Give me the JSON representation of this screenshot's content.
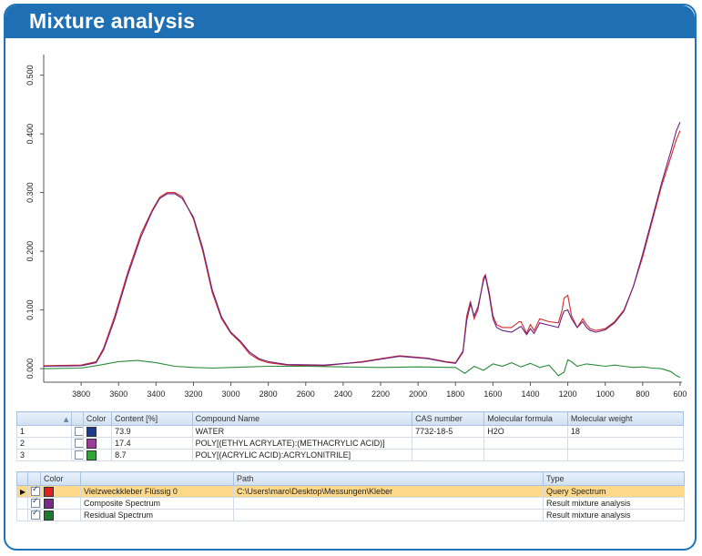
{
  "title": "Mixture analysis",
  "chart_data": {
    "type": "line",
    "x_ticks": [
      "3800",
      "3600",
      "3400",
      "3200",
      "3000",
      "2800",
      "2600",
      "2400",
      "2200",
      "2000",
      "1800",
      "1600",
      "1400",
      "1200",
      "1000",
      "800",
      "600"
    ],
    "y_ticks": [
      "0.000",
      "0.100",
      "0.200",
      "0.300",
      "0.400",
      "0.500"
    ],
    "xlim": [
      4000,
      590
    ],
    "ylim": [
      -0.02,
      0.535
    ],
    "series": [
      {
        "name": "Vielzweckkleber Flüssig 0",
        "color": "#d42a2a",
        "x": [
          4000,
          3800,
          3720,
          3680,
          3620,
          3550,
          3480,
          3420,
          3380,
          3340,
          3300,
          3260,
          3200,
          3150,
          3100,
          3050,
          3000,
          2950,
          2900,
          2850,
          2800,
          2700,
          2500,
          2300,
          2100,
          1950,
          1850,
          1800,
          1760,
          1740,
          1720,
          1700,
          1680,
          1650,
          1640,
          1620,
          1600,
          1580,
          1550,
          1500,
          1460,
          1450,
          1420,
          1400,
          1380,
          1350,
          1300,
          1250,
          1230,
          1220,
          1200,
          1180,
          1150,
          1120,
          1100,
          1080,
          1050,
          1000,
          950,
          900,
          850,
          800,
          750,
          700,
          650,
          620,
          600
        ],
        "y": [
          0.005,
          0.006,
          0.012,
          0.035,
          0.09,
          0.165,
          0.23,
          0.27,
          0.292,
          0.3,
          0.3,
          0.293,
          0.255,
          0.2,
          0.13,
          0.085,
          0.06,
          0.045,
          0.025,
          0.015,
          0.01,
          0.006,
          0.005,
          0.012,
          0.022,
          0.018,
          0.012,
          0.01,
          0.03,
          0.09,
          0.115,
          0.085,
          0.1,
          0.155,
          0.16,
          0.13,
          0.09,
          0.075,
          0.07,
          0.07,
          0.08,
          0.08,
          0.06,
          0.075,
          0.065,
          0.085,
          0.08,
          0.078,
          0.1,
          0.12,
          0.125,
          0.09,
          0.07,
          0.085,
          0.075,
          0.068,
          0.065,
          0.068,
          0.08,
          0.1,
          0.14,
          0.19,
          0.25,
          0.31,
          0.36,
          0.39,
          0.405
        ]
      },
      {
        "name": "Composite Spectrum",
        "color": "#6a1f80",
        "x": [
          4000,
          3800,
          3720,
          3680,
          3620,
          3550,
          3480,
          3420,
          3380,
          3340,
          3300,
          3260,
          3200,
          3150,
          3100,
          3050,
          3000,
          2950,
          2900,
          2850,
          2800,
          2700,
          2500,
          2300,
          2100,
          1950,
          1850,
          1800,
          1760,
          1740,
          1720,
          1700,
          1680,
          1650,
          1640,
          1620,
          1600,
          1580,
          1550,
          1500,
          1460,
          1450,
          1420,
          1400,
          1380,
          1350,
          1300,
          1250,
          1230,
          1220,
          1200,
          1180,
          1150,
          1120,
          1100,
          1080,
          1050,
          1000,
          950,
          900,
          850,
          800,
          750,
          700,
          650,
          620,
          600
        ],
        "y": [
          0.004,
          0.005,
          0.01,
          0.032,
          0.085,
          0.16,
          0.225,
          0.268,
          0.29,
          0.298,
          0.298,
          0.29,
          0.258,
          0.205,
          0.135,
          0.088,
          0.062,
          0.047,
          0.028,
          0.017,
          0.012,
          0.007,
          0.006,
          0.011,
          0.021,
          0.017,
          0.011,
          0.009,
          0.028,
          0.082,
          0.11,
          0.09,
          0.105,
          0.15,
          0.158,
          0.125,
          0.085,
          0.07,
          0.065,
          0.062,
          0.07,
          0.072,
          0.058,
          0.068,
          0.06,
          0.078,
          0.074,
          0.07,
          0.09,
          0.098,
          0.1,
          0.085,
          0.07,
          0.08,
          0.07,
          0.065,
          0.062,
          0.066,
          0.078,
          0.098,
          0.14,
          0.195,
          0.255,
          0.315,
          0.37,
          0.405,
          0.42
        ]
      },
      {
        "name": "Residual Spectrum",
        "color": "#2a8a3a",
        "x": [
          4000,
          3800,
          3700,
          3600,
          3500,
          3400,
          3300,
          3200,
          3100,
          3000,
          2900,
          2800,
          2600,
          2400,
          2200,
          2000,
          1800,
          1750,
          1700,
          1650,
          1600,
          1550,
          1500,
          1450,
          1400,
          1350,
          1300,
          1250,
          1220,
          1200,
          1180,
          1150,
          1100,
          1050,
          1000,
          950,
          900,
          850,
          800,
          750,
          700,
          650,
          620,
          600
        ],
        "y": [
          0.0,
          0.001,
          0.006,
          0.012,
          0.014,
          0.01,
          0.004,
          0.002,
          0.001,
          0.002,
          0.003,
          0.004,
          0.004,
          0.003,
          0.002,
          0.003,
          0.002,
          -0.008,
          0.004,
          -0.003,
          0.008,
          0.004,
          0.01,
          0.003,
          0.009,
          0.002,
          0.006,
          -0.012,
          -0.006,
          0.015,
          0.012,
          0.004,
          0.008,
          0.006,
          0.004,
          0.006,
          0.004,
          0.002,
          0.003,
          0.001,
          0.0,
          -0.005,
          -0.012,
          -0.015
        ]
      }
    ],
    "grid": false,
    "legend": "none"
  },
  "compound_table": {
    "headers": [
      "",
      "Color",
      "Content [%]",
      "Compound Name",
      "CAS number",
      "Molecular formula",
      "Molecular weight"
    ],
    "rows": [
      {
        "index": "1",
        "color": "#233a8c",
        "content": "73.9",
        "name": "WATER",
        "cas": "7732-18-5",
        "formula": "H2O",
        "weight": "18"
      },
      {
        "index": "2",
        "color": "#9b3c98",
        "content": "17.4",
        "name": "POLY[(ETHYL ACRYLATE):(METHACRYLIC ACID)]",
        "cas": "",
        "formula": "",
        "weight": ""
      },
      {
        "index": "3",
        "color": "#33a33a",
        "content": "8.7",
        "name": "POLY[(ACRYLIC ACID):ACRYLONITRILE]",
        "cas": "",
        "formula": "",
        "weight": ""
      }
    ]
  },
  "spectrum_table": {
    "headers": [
      "Color",
      "",
      "Path",
      "Type"
    ],
    "rows": [
      {
        "color": "#e02020",
        "name": "Vielzweckkleber Flüssig 0",
        "path": "C:\\Users\\maro\\Desktop\\Messungen\\Kleber",
        "type": "Query Spectrum",
        "selected": true
      },
      {
        "color": "#7a2a8a",
        "name": "Composite Spectrum",
        "path": "",
        "type": "Result mixture analysis",
        "selected": false
      },
      {
        "color": "#1c7a2e",
        "name": "Residual Spectrum",
        "path": "",
        "type": "Result mixture analysis",
        "selected": false
      }
    ]
  }
}
